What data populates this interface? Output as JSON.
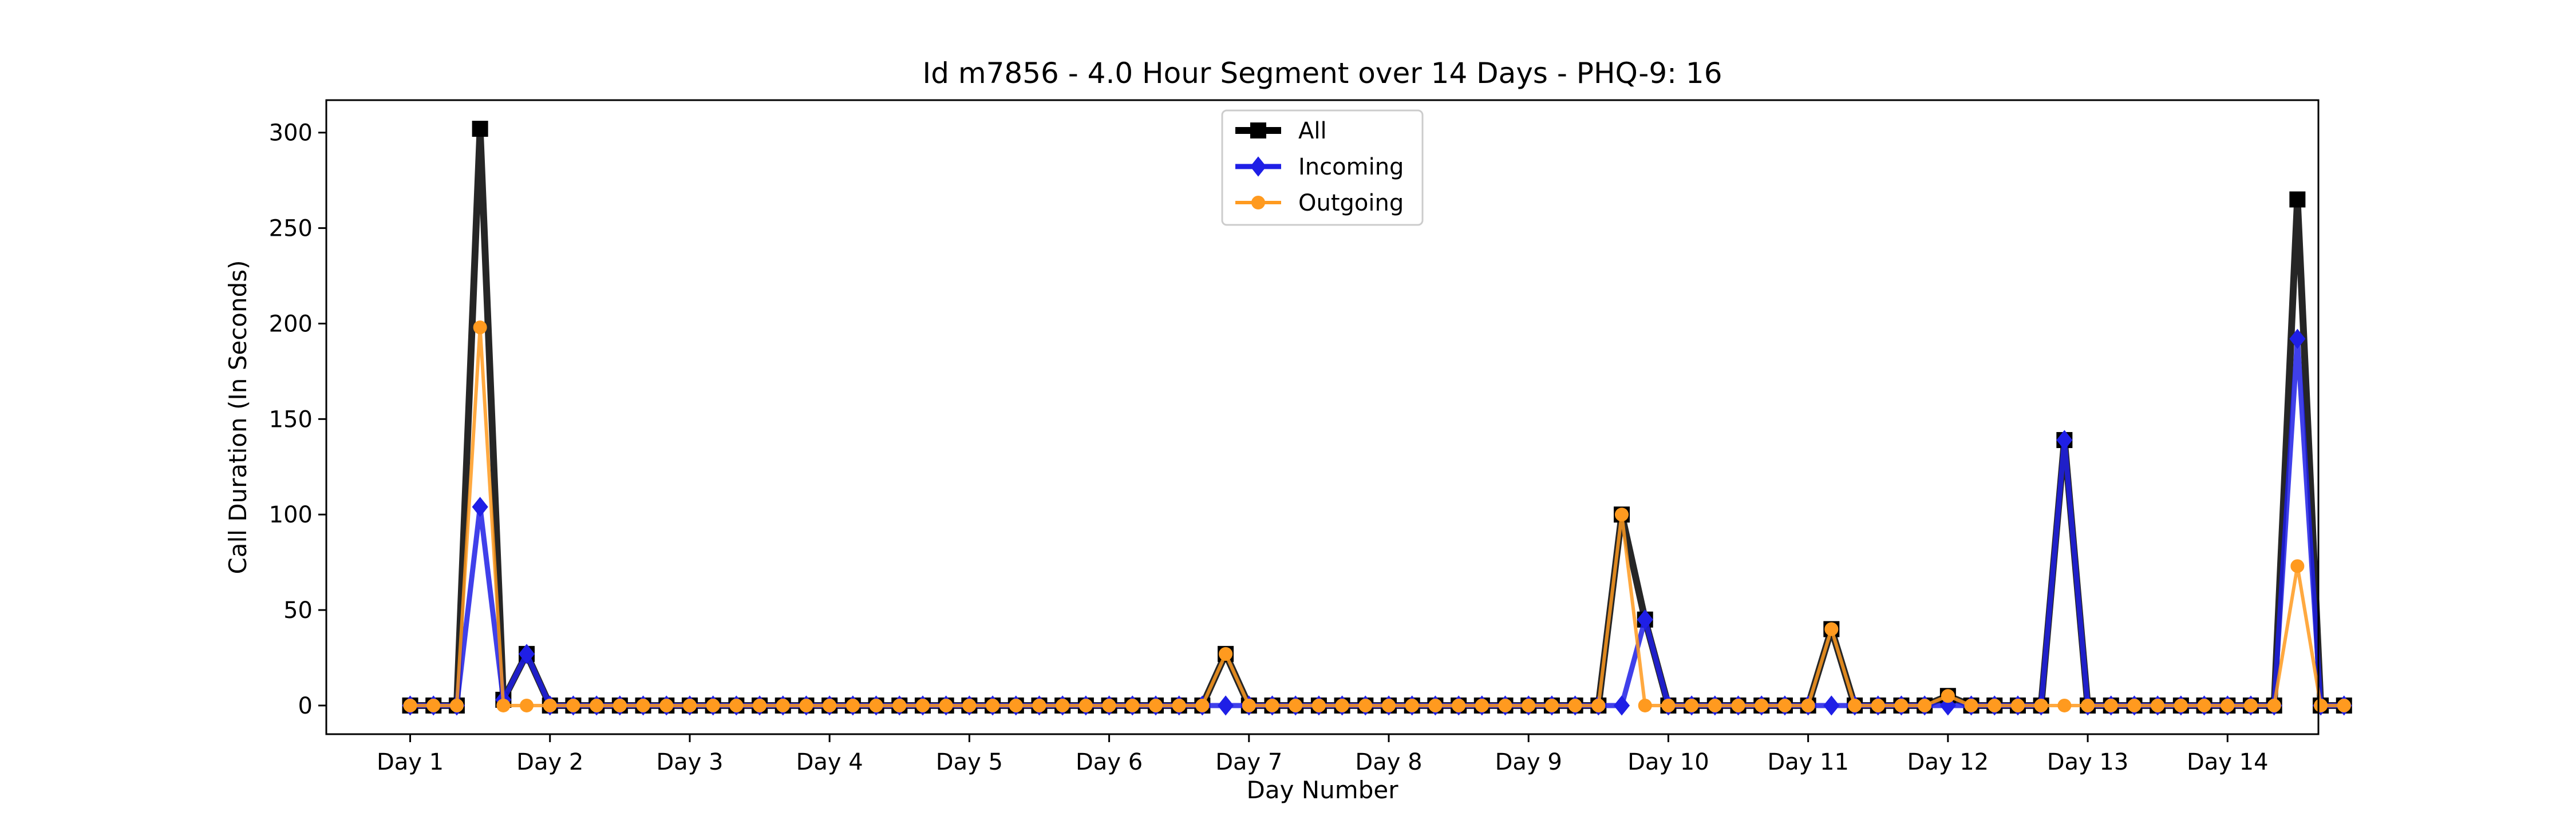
{
  "chart_data": {
    "type": "line",
    "title": "Id m7856 - 4.0 Hour Segment over 14 Days - PHQ-9: 16",
    "xlabel": "Day Number",
    "ylabel": "Call Duration (In Seconds)",
    "x_tick_labels": [
      "Day 1",
      "Day 2",
      "Day 3",
      "Day 4",
      "Day 5",
      "Day 6",
      "Day 7",
      "Day 8",
      "Day 9",
      "Day 10",
      "Day 11",
      "Day 12",
      "Day 13",
      "Day 14"
    ],
    "y_ticks": [
      0,
      50,
      100,
      150,
      200,
      250,
      300
    ],
    "ylim": [
      -15,
      317
    ],
    "x_range_days": [
      0.4,
      14.65
    ],
    "grid": false,
    "legend_position": "top-center",
    "points_per_day": 6,
    "series": [
      {
        "name": "All",
        "color": "#000000",
        "marker": "square",
        "values": [
          0,
          0,
          0,
          302,
          3,
          27,
          0,
          0,
          0,
          0,
          0,
          0,
          0,
          0,
          0,
          0,
          0,
          0,
          0,
          0,
          0,
          0,
          0,
          0,
          0,
          0,
          0,
          0,
          0,
          0,
          0,
          0,
          0,
          0,
          0,
          27,
          0,
          0,
          0,
          0,
          0,
          0,
          0,
          0,
          0,
          0,
          0,
          0,
          0,
          0,
          0,
          0,
          100,
          45,
          0,
          0,
          0,
          0,
          0,
          0,
          0,
          40,
          0,
          0,
          0,
          0,
          5,
          0,
          0,
          0,
          0,
          139,
          0,
          0,
          0,
          0,
          0,
          0,
          0,
          0,
          0,
          265,
          0,
          0
        ]
      },
      {
        "name": "Incoming",
        "color": "#1f1fe6",
        "marker": "diamond",
        "values": [
          0,
          0,
          0,
          104,
          3,
          27,
          0,
          0,
          0,
          0,
          0,
          0,
          0,
          0,
          0,
          0,
          0,
          0,
          0,
          0,
          0,
          0,
          0,
          0,
          0,
          0,
          0,
          0,
          0,
          0,
          0,
          0,
          0,
          0,
          0,
          0,
          0,
          0,
          0,
          0,
          0,
          0,
          0,
          0,
          0,
          0,
          0,
          0,
          0,
          0,
          0,
          0,
          0,
          45,
          0,
          0,
          0,
          0,
          0,
          0,
          0,
          0,
          0,
          0,
          0,
          0,
          0,
          0,
          0,
          0,
          0,
          139,
          0,
          0,
          0,
          0,
          0,
          0,
          0,
          0,
          0,
          192,
          0,
          0
        ]
      },
      {
        "name": "Outgoing",
        "color": "#ff9a1f",
        "marker": "circle",
        "values": [
          0,
          0,
          0,
          198,
          0,
          0,
          0,
          0,
          0,
          0,
          0,
          0,
          0,
          0,
          0,
          0,
          0,
          0,
          0,
          0,
          0,
          0,
          0,
          0,
          0,
          0,
          0,
          0,
          0,
          0,
          0,
          0,
          0,
          0,
          0,
          27,
          0,
          0,
          0,
          0,
          0,
          0,
          0,
          0,
          0,
          0,
          0,
          0,
          0,
          0,
          0,
          0,
          100,
          0,
          0,
          0,
          0,
          0,
          0,
          0,
          0,
          40,
          0,
          0,
          0,
          0,
          5,
          0,
          0,
          0,
          0,
          0,
          0,
          0,
          0,
          0,
          0,
          0,
          0,
          0,
          0,
          73,
          0,
          0
        ]
      }
    ]
  }
}
